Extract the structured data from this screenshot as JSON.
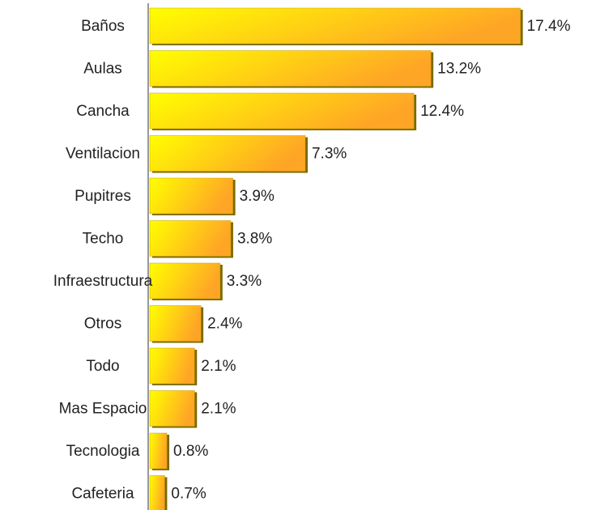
{
  "chart_data": {
    "type": "bar",
    "orientation": "horizontal",
    "categories": [
      "Baños",
      "Aulas",
      "Cancha",
      "Ventilacion",
      "Pupitres",
      "Techo",
      "Infraestructura",
      "Otros",
      "Todo",
      "Mas Espacio",
      "Tecnologia",
      "Cafeteria"
    ],
    "values": [
      17.4,
      13.2,
      12.4,
      7.3,
      3.9,
      3.8,
      3.3,
      2.4,
      2.1,
      2.1,
      0.8,
      0.7
    ],
    "value_labels": [
      "17.4%",
      "13.2%",
      "12.4%",
      "7.3%",
      "3.9%",
      "3.8%",
      "3.3%",
      "2.4%",
      "2.1%",
      "2.1%",
      "0.8%",
      "0.7%"
    ],
    "color": "#ffd000"
  }
}
